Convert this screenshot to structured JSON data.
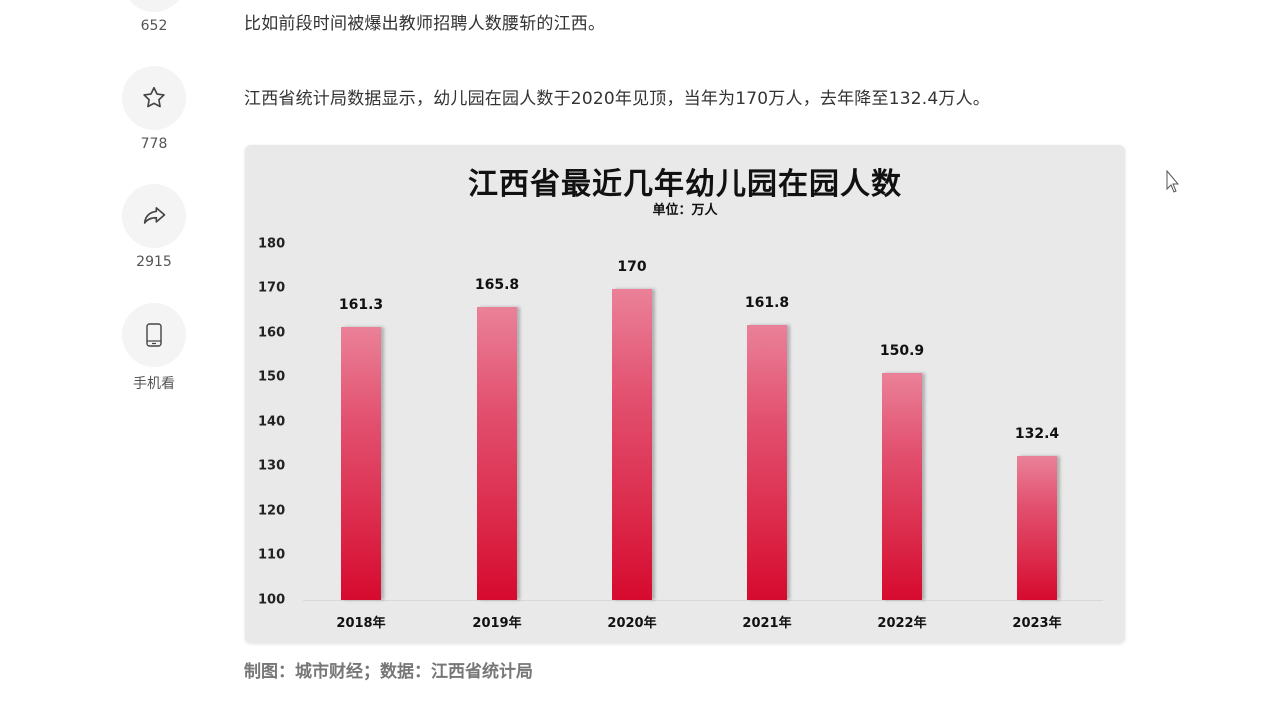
{
  "sidebar": {
    "items": [
      {
        "icon": "like-icon",
        "count": "652"
      },
      {
        "icon": "star-icon",
        "count": "778"
      },
      {
        "icon": "share-icon",
        "count": "2915"
      },
      {
        "icon": "phone-icon",
        "count": "手机看"
      }
    ]
  },
  "article": {
    "paragraphs": [
      "比如前段时间被爆出教师招聘人数腰斩的江西。",
      "江西省统计局数据显示，幼儿园在园人数于2020年见顶，当年为170万人，去年降至132.4万人。"
    ],
    "caption": "制图：城市财经；数据：江西省统计局"
  },
  "chart_data": {
    "type": "bar",
    "title": "江西省最近几年幼儿园在园人数",
    "subtitle": "单位：万人",
    "categories": [
      "2018年",
      "2019年",
      "2020年",
      "2021年",
      "2022年",
      "2023年"
    ],
    "values": [
      161.3,
      165.8,
      170,
      161.8,
      150.9,
      132.4
    ],
    "value_labels": [
      "161.3",
      "165.8",
      "170",
      "161.8",
      "150.9",
      "132.4"
    ],
    "xlabel": "",
    "ylabel": "",
    "ylim": [
      100,
      180
    ],
    "yticks": [
      "180",
      "170",
      "160",
      "150",
      "140",
      "130",
      "120",
      "110",
      "100"
    ],
    "grid": false,
    "legend": "none",
    "bar_color_top": "#ea8198",
    "bar_color_bottom": "#d60a2e",
    "background": "#e9e9e9"
  }
}
